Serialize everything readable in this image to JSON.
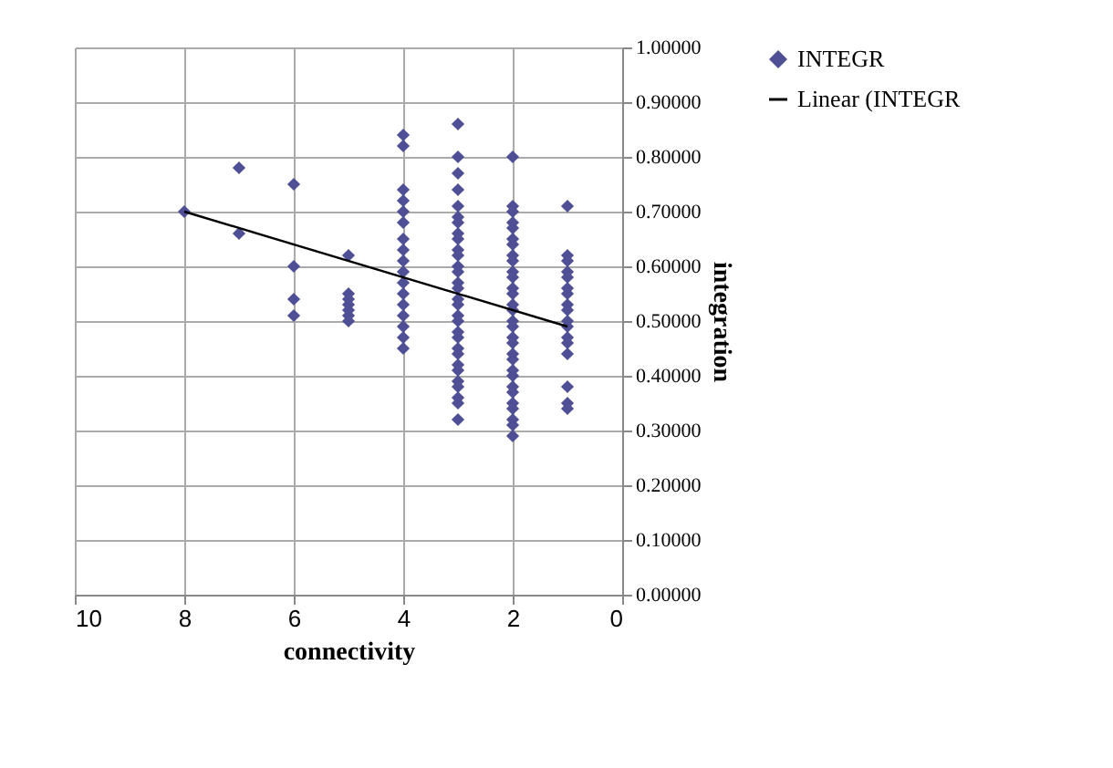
{
  "chart_data": {
    "type": "scatter",
    "xlabel": "connectivity",
    "ylabel": "integration",
    "xlim": [
      10,
      0
    ],
    "xticks": [
      10,
      8,
      6,
      4,
      2,
      0
    ],
    "ylim": [
      0,
      1
    ],
    "yticks": [
      {
        "value": 0,
        "label": "0.00000"
      },
      {
        "value": 0.1,
        "label": "0.10000"
      },
      {
        "value": 0.2,
        "label": "0.20000"
      },
      {
        "value": 0.3,
        "label": "0.30000"
      },
      {
        "value": 0.4,
        "label": "0.40000"
      },
      {
        "value": 0.5,
        "label": "0.50000"
      },
      {
        "value": 0.6,
        "label": "0.60000"
      },
      {
        "value": 0.7,
        "label": "0.70000"
      },
      {
        "value": 0.8,
        "label": "0.80000"
      },
      {
        "value": 0.9,
        "label": "0.90000"
      },
      {
        "value": 1,
        "label": "1.00000"
      }
    ],
    "grid": true,
    "legend": "right",
    "series": [
      {
        "name": "INTEGR",
        "type": "scatter",
        "marker": "diamond",
        "color": "#4f4f96",
        "x": [
          8,
          7,
          7,
          6,
          6,
          6,
          6,
          5,
          5,
          5,
          5,
          5,
          5,
          5,
          4,
          4,
          4,
          4,
          4,
          4,
          4,
          4,
          4,
          4,
          4,
          4,
          4,
          4,
          4,
          4,
          4,
          3,
          3,
          3,
          3,
          3,
          3,
          3,
          3,
          3,
          3,
          3,
          3,
          3,
          3,
          3,
          3,
          3,
          3,
          3,
          3,
          3,
          3,
          3,
          3,
          3,
          3,
          3,
          3,
          3,
          3,
          2,
          2,
          2,
          2,
          2,
          2,
          2,
          2,
          2,
          2,
          2,
          2,
          2,
          2,
          2,
          2,
          2,
          2,
          2,
          2,
          2,
          2,
          2,
          2,
          2,
          2,
          2,
          2,
          2,
          2,
          1,
          1,
          1,
          1,
          1,
          1,
          1,
          1,
          1,
          1,
          1,
          1,
          1,
          1,
          1,
          1,
          1
        ],
        "values": [
          0.7,
          0.78,
          0.66,
          0.75,
          0.6,
          0.54,
          0.51,
          0.62,
          0.55,
          0.54,
          0.53,
          0.52,
          0.51,
          0.5,
          0.84,
          0.82,
          0.74,
          0.72,
          0.7,
          0.68,
          0.65,
          0.63,
          0.61,
          0.59,
          0.57,
          0.55,
          0.53,
          0.51,
          0.49,
          0.47,
          0.45,
          0.86,
          0.8,
          0.77,
          0.74,
          0.71,
          0.69,
          0.68,
          0.66,
          0.65,
          0.63,
          0.62,
          0.6,
          0.59,
          0.57,
          0.56,
          0.54,
          0.53,
          0.51,
          0.5,
          0.48,
          0.47,
          0.45,
          0.44,
          0.42,
          0.41,
          0.39,
          0.38,
          0.36,
          0.35,
          0.32,
          0.8,
          0.71,
          0.7,
          0.68,
          0.67,
          0.65,
          0.64,
          0.62,
          0.61,
          0.59,
          0.58,
          0.56,
          0.55,
          0.53,
          0.52,
          0.5,
          0.49,
          0.47,
          0.46,
          0.44,
          0.43,
          0.41,
          0.4,
          0.38,
          0.37,
          0.35,
          0.34,
          0.32,
          0.31,
          0.29,
          0.71,
          0.62,
          0.61,
          0.59,
          0.58,
          0.56,
          0.55,
          0.53,
          0.52,
          0.5,
          0.49,
          0.47,
          0.46,
          0.44,
          0.38,
          0.35,
          0.34
        ]
      },
      {
        "name": "Linear (INTEGR",
        "type": "line",
        "marker": "none",
        "line_style": "solid",
        "color": "#000000",
        "x": [
          8,
          1
        ],
        "values": [
          0.7,
          0.49
        ]
      }
    ]
  }
}
